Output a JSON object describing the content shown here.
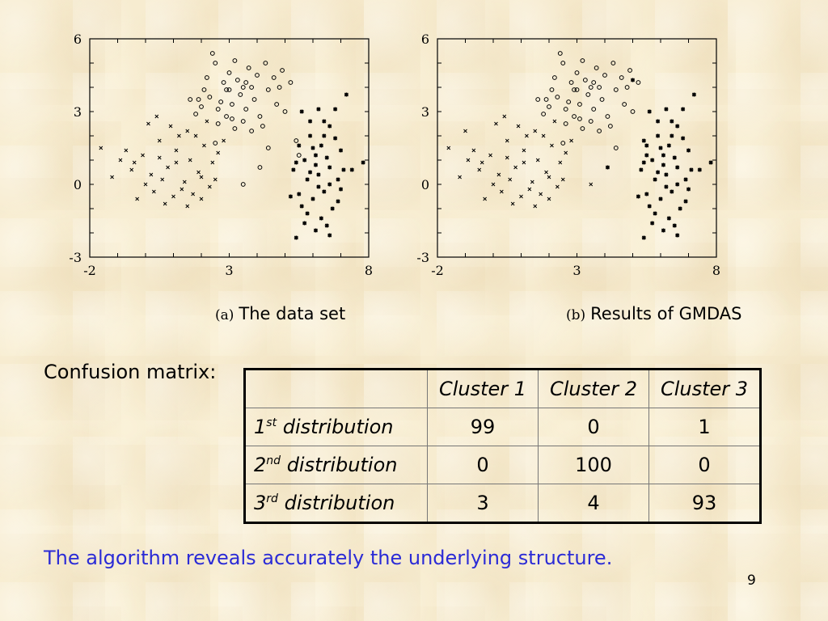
{
  "chart_data": [
    {
      "type": "scatter",
      "caption_tag": "(a)",
      "caption": "The data set",
      "xlim": [
        -2,
        8
      ],
      "ylim": [
        -3,
        6
      ],
      "xticks": [
        "-2",
        "3",
        "8"
      ],
      "yticks": [
        "-3",
        "0",
        "3",
        "6"
      ],
      "grid": false,
      "series": [
        {
          "marker": "circle",
          "points": [
            [
              2.2,
              4.4
            ],
            [
              2.5,
              5.0
            ],
            [
              2.8,
              4.2
            ],
            [
              3.0,
              4.6
            ],
            [
              3.2,
              5.1
            ],
            [
              3.5,
              4.0
            ],
            [
              3.7,
              4.8
            ],
            [
              4.0,
              4.5
            ],
            [
              4.3,
              5.0
            ],
            [
              4.6,
              4.4
            ],
            [
              4.8,
              4.0
            ],
            [
              5.2,
              4.2
            ],
            [
              2.0,
              3.2
            ],
            [
              2.3,
              3.6
            ],
            [
              2.6,
              3.1
            ],
            [
              2.9,
              3.9
            ],
            [
              3.1,
              3.3
            ],
            [
              3.4,
              3.7
            ],
            [
              3.6,
              3.1
            ],
            [
              3.9,
              3.5
            ],
            [
              4.1,
              2.8
            ],
            [
              4.4,
              3.9
            ],
            [
              4.7,
              3.3
            ],
            [
              5.0,
              3.0
            ],
            [
              2.6,
              2.5
            ],
            [
              2.9,
              2.8
            ],
            [
              3.2,
              2.3
            ],
            [
              3.5,
              2.6
            ],
            [
              3.8,
              2.2
            ],
            [
              4.2,
              2.4
            ],
            [
              1.8,
              2.9
            ],
            [
              1.6,
              3.5
            ],
            [
              4.4,
              1.5
            ],
            [
              5.4,
              1.8
            ],
            [
              2.5,
              1.7
            ],
            [
              4.1,
              0.7
            ],
            [
              3.5,
              0.0
            ],
            [
              5.5,
              1.2
            ],
            [
              3.3,
              4.3
            ],
            [
              2.7,
              3.4
            ],
            [
              3.0,
              3.9
            ],
            [
              3.6,
              4.2
            ],
            [
              2.1,
              3.9
            ],
            [
              4.9,
              4.7
            ],
            [
              1.9,
              3.5
            ],
            [
              2.4,
              5.4
            ],
            [
              3.8,
              4.0
            ],
            [
              3.1,
              2.7
            ]
          ]
        },
        {
          "marker": "x",
          "points": [
            [
              -1.6,
              1.5
            ],
            [
              -0.9,
              1.0
            ],
            [
              -0.5,
              0.6
            ],
            [
              -0.1,
              1.2
            ],
            [
              0.2,
              0.4
            ],
            [
              0.5,
              1.8
            ],
            [
              0.8,
              0.7
            ],
            [
              1.1,
              1.4
            ],
            [
              1.4,
              0.1
            ],
            [
              1.6,
              1.0
            ],
            [
              1.9,
              0.5
            ],
            [
              2.1,
              1.6
            ],
            [
              2.4,
              0.9
            ],
            [
              2.6,
              1.3
            ],
            [
              2.8,
              1.8
            ],
            [
              0.0,
              0.0
            ],
            [
              0.3,
              -0.3
            ],
            [
              0.6,
              0.2
            ],
            [
              1.0,
              -0.5
            ],
            [
              1.3,
              -0.2
            ],
            [
              1.7,
              -0.4
            ],
            [
              2.0,
              0.3
            ],
            [
              2.3,
              -0.1
            ],
            [
              -0.3,
              -0.6
            ],
            [
              0.9,
              2.4
            ],
            [
              1.2,
              2.0
            ],
            [
              1.5,
              2.2
            ],
            [
              0.1,
              2.5
            ],
            [
              0.4,
              2.8
            ],
            [
              -1.2,
              0.3
            ],
            [
              -0.7,
              1.4
            ],
            [
              1.8,
              2.0
            ],
            [
              2.2,
              2.6
            ],
            [
              0.7,
              -0.8
            ],
            [
              1.5,
              -0.9
            ],
            [
              1.1,
              0.9
            ],
            [
              0.5,
              1.1
            ],
            [
              -0.4,
              0.9
            ],
            [
              2.5,
              0.2
            ],
            [
              2.0,
              -0.6
            ]
          ]
        },
        {
          "marker": "star",
          "points": [
            [
              5.6,
              3.0
            ],
            [
              6.2,
              3.1
            ],
            [
              6.6,
              2.4
            ],
            [
              5.9,
              2.0
            ],
            [
              6.3,
              1.6
            ],
            [
              6.8,
              1.9
            ],
            [
              5.7,
              1.0
            ],
            [
              6.1,
              0.8
            ],
            [
              6.5,
              1.1
            ],
            [
              7.0,
              1.4
            ],
            [
              5.3,
              0.6
            ],
            [
              5.8,
              0.2
            ],
            [
              6.2,
              0.4
            ],
            [
              6.6,
              0.0
            ],
            [
              7.1,
              0.6
            ],
            [
              5.5,
              -0.4
            ],
            [
              6.0,
              -0.6
            ],
            [
              6.4,
              -0.3
            ],
            [
              6.9,
              -0.7
            ],
            [
              5.8,
              -1.2
            ],
            [
              6.3,
              -1.4
            ],
            [
              6.7,
              -1.0
            ],
            [
              6.1,
              -1.9
            ],
            [
              6.6,
              -2.1
            ],
            [
              5.4,
              -2.2
            ],
            [
              5.2,
              -0.5
            ],
            [
              7.4,
              0.6
            ],
            [
              7.8,
              0.9
            ],
            [
              6.0,
              1.5
            ],
            [
              6.4,
              2.0
            ],
            [
              5.9,
              2.6
            ],
            [
              7.2,
              3.7
            ],
            [
              6.8,
              3.1
            ],
            [
              5.5,
              1.6
            ],
            [
              6.5,
              -1.7
            ],
            [
              6.9,
              0.2
            ],
            [
              5.6,
              -0.9
            ],
            [
              6.2,
              -0.1
            ],
            [
              6.6,
              0.7
            ],
            [
              5.9,
              0.5
            ],
            [
              5.7,
              -1.6
            ],
            [
              6.1,
              1.2
            ],
            [
              7.0,
              -0.2
            ],
            [
              6.4,
              2.6
            ],
            [
              5.4,
              0.9
            ]
          ]
        }
      ]
    },
    {
      "type": "scatter",
      "caption_tag": "(b)",
      "caption": "Results of GMDAS",
      "xlim": [
        -2,
        8
      ],
      "ylim": [
        -3,
        6
      ],
      "xticks": [
        "-2",
        "3",
        "8"
      ],
      "yticks": [
        "-3",
        "0",
        "3",
        "6"
      ],
      "grid": false,
      "series": [
        {
          "marker": "circle",
          "points": [
            [
              2.2,
              4.4
            ],
            [
              2.5,
              5.0
            ],
            [
              2.8,
              4.2
            ],
            [
              3.0,
              4.6
            ],
            [
              3.2,
              5.1
            ],
            [
              3.5,
              4.0
            ],
            [
              3.7,
              4.8
            ],
            [
              4.0,
              4.5
            ],
            [
              4.3,
              5.0
            ],
            [
              4.6,
              4.4
            ],
            [
              4.8,
              4.0
            ],
            [
              5.2,
              4.2
            ],
            [
              2.0,
              3.2
            ],
            [
              2.3,
              3.6
            ],
            [
              2.6,
              3.1
            ],
            [
              2.9,
              3.9
            ],
            [
              3.1,
              3.3
            ],
            [
              3.4,
              3.7
            ],
            [
              3.6,
              3.1
            ],
            [
              3.9,
              3.5
            ],
            [
              4.1,
              2.8
            ],
            [
              4.4,
              3.9
            ],
            [
              4.7,
              3.3
            ],
            [
              5.0,
              3.0
            ],
            [
              2.6,
              2.5
            ],
            [
              2.9,
              2.8
            ],
            [
              3.2,
              2.3
            ],
            [
              3.5,
              2.6
            ],
            [
              3.8,
              2.2
            ],
            [
              4.2,
              2.4
            ],
            [
              1.8,
              2.9
            ],
            [
              1.6,
              3.5
            ],
            [
              4.4,
              1.5
            ],
            [
              2.5,
              1.7
            ],
            [
              3.3,
              4.3
            ],
            [
              2.7,
              3.4
            ],
            [
              3.0,
              3.9
            ],
            [
              3.6,
              4.2
            ],
            [
              2.1,
              3.9
            ],
            [
              4.9,
              4.7
            ],
            [
              1.9,
              3.5
            ],
            [
              2.4,
              5.4
            ],
            [
              3.8,
              4.0
            ],
            [
              3.1,
              2.7
            ]
          ]
        },
        {
          "marker": "x",
          "points": [
            [
              -1.6,
              1.5
            ],
            [
              -0.9,
              1.0
            ],
            [
              -0.5,
              0.6
            ],
            [
              -0.1,
              1.2
            ],
            [
              0.2,
              0.4
            ],
            [
              0.5,
              1.8
            ],
            [
              0.8,
              0.7
            ],
            [
              1.1,
              1.4
            ],
            [
              1.4,
              0.1
            ],
            [
              1.6,
              1.0
            ],
            [
              1.9,
              0.5
            ],
            [
              2.1,
              1.6
            ],
            [
              2.4,
              0.9
            ],
            [
              2.6,
              1.3
            ],
            [
              2.8,
              1.8
            ],
            [
              0.0,
              0.0
            ],
            [
              0.3,
              -0.3
            ],
            [
              0.6,
              0.2
            ],
            [
              1.0,
              -0.5
            ],
            [
              1.3,
              -0.2
            ],
            [
              1.7,
              -0.4
            ],
            [
              2.0,
              0.3
            ],
            [
              2.3,
              -0.1
            ],
            [
              -0.3,
              -0.6
            ],
            [
              0.9,
              2.4
            ],
            [
              1.2,
              2.0
            ],
            [
              1.5,
              2.2
            ],
            [
              0.1,
              2.5
            ],
            [
              0.4,
              2.8
            ],
            [
              -1.2,
              0.3
            ],
            [
              -0.7,
              1.4
            ],
            [
              1.8,
              2.0
            ],
            [
              2.2,
              2.6
            ],
            [
              0.7,
              -0.8
            ],
            [
              1.5,
              -0.9
            ],
            [
              1.1,
              0.9
            ],
            [
              0.5,
              1.1
            ],
            [
              -0.4,
              0.9
            ],
            [
              2.5,
              0.2
            ],
            [
              2.0,
              -0.6
            ],
            [
              -1.0,
              2.2
            ],
            [
              3.5,
              0.0
            ]
          ]
        },
        {
          "marker": "star",
          "points": [
            [
              5.6,
              3.0
            ],
            [
              6.2,
              3.1
            ],
            [
              6.6,
              2.4
            ],
            [
              5.9,
              2.0
            ],
            [
              6.3,
              1.6
            ],
            [
              6.8,
              1.9
            ],
            [
              5.7,
              1.0
            ],
            [
              6.1,
              0.8
            ],
            [
              6.5,
              1.1
            ],
            [
              7.0,
              1.4
            ],
            [
              5.3,
              0.6
            ],
            [
              5.8,
              0.2
            ],
            [
              6.2,
              0.4
            ],
            [
              6.6,
              0.0
            ],
            [
              7.1,
              0.6
            ],
            [
              5.5,
              -0.4
            ],
            [
              6.0,
              -0.6
            ],
            [
              6.4,
              -0.3
            ],
            [
              6.9,
              -0.7
            ],
            [
              5.8,
              -1.2
            ],
            [
              6.3,
              -1.4
            ],
            [
              6.7,
              -1.0
            ],
            [
              6.1,
              -1.9
            ],
            [
              6.6,
              -2.1
            ],
            [
              5.4,
              -2.2
            ],
            [
              5.2,
              -0.5
            ],
            [
              7.4,
              0.6
            ],
            [
              7.8,
              0.9
            ],
            [
              6.0,
              1.5
            ],
            [
              6.4,
              2.0
            ],
            [
              5.9,
              2.6
            ],
            [
              7.2,
              3.7
            ],
            [
              6.8,
              3.1
            ],
            [
              5.5,
              1.6
            ],
            [
              6.5,
              -1.7
            ],
            [
              6.9,
              0.2
            ],
            [
              5.6,
              -0.9
            ],
            [
              6.2,
              -0.1
            ],
            [
              6.6,
              0.7
            ],
            [
              5.9,
              0.5
            ],
            [
              5.7,
              -1.6
            ],
            [
              6.1,
              1.2
            ],
            [
              7.0,
              -0.2
            ],
            [
              6.4,
              2.6
            ],
            [
              5.4,
              0.9
            ],
            [
              5.4,
              1.8
            ],
            [
              4.1,
              0.7
            ],
            [
              5.5,
              1.2
            ],
            [
              5.0,
              4.3
            ]
          ]
        }
      ]
    }
  ],
  "confusion_matrix": {
    "label": "Confusion matrix:",
    "columns": [
      "Cluster 1",
      "Cluster 2",
      "Cluster 3"
    ],
    "rows": [
      {
        "num": "1",
        "sup": "st",
        "label": "distribution",
        "values": [
          "99",
          "0",
          "1"
        ]
      },
      {
        "num": "2",
        "sup": "nd",
        "label": "distribution",
        "values": [
          "0",
          "100",
          "0"
        ]
      },
      {
        "num": "3",
        "sup": "rd",
        "label": "distribution",
        "values": [
          "3",
          "4",
          "93"
        ]
      }
    ]
  },
  "conclusion": "The algorithm reveals accurately the underlying structure.",
  "page_number": "9",
  "colors": {
    "conclusion_text": "#2b2bd6",
    "background": "#f7ecd0"
  }
}
